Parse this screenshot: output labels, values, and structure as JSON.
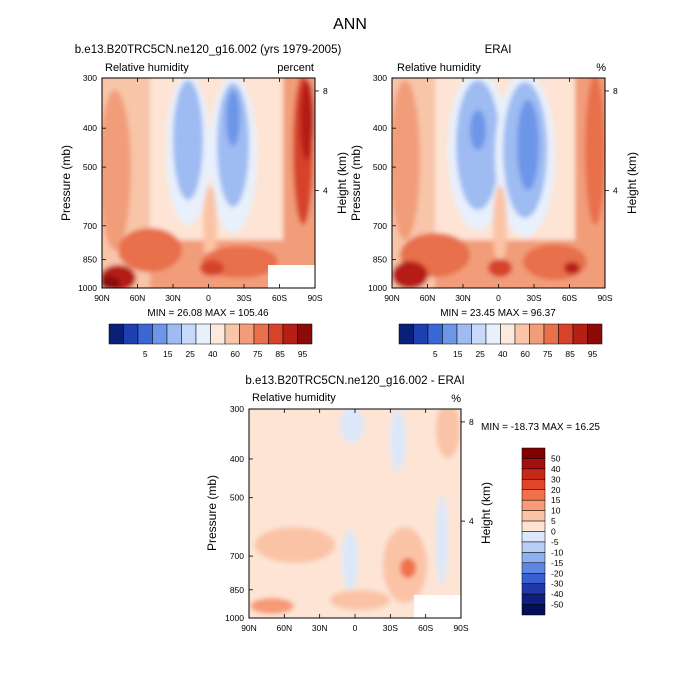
{
  "figure": {
    "title": "ANN"
  },
  "chart_data": [
    {
      "type": "heatmap",
      "title": "b.e13.B20TRC5CN.ne120_g16.002 (yrs 1979-2005)",
      "left_label": "Relative humidity",
      "right_label": "percent",
      "ylabel": "Pressure (mb)",
      "ylabel_right": "Height (km)",
      "x_ticks": [
        "90N",
        "60N",
        "30N",
        "0",
        "30S",
        "60S",
        "90S"
      ],
      "x_values": [
        90,
        60,
        30,
        0,
        -30,
        -60,
        -90
      ],
      "y_ticks": [
        "300",
        "400",
        "500",
        "700",
        "850",
        "1000"
      ],
      "y_values": [
        300,
        400,
        500,
        700,
        850,
        1000
      ],
      "height_ticks": [
        "8",
        "4"
      ],
      "height_values": [
        8,
        4
      ],
      "stats": "MIN = 26.08  MAX = 105.46",
      "min": 26.08,
      "max": 105.46,
      "levels": [
        5,
        15,
        25,
        40,
        60,
        75,
        85,
        95
      ]
    },
    {
      "type": "heatmap",
      "title": "ERAI",
      "left_label": "Relative humidity",
      "right_label": "%",
      "ylabel": "Pressure (mb)",
      "ylabel_right": "Height (km)",
      "x_ticks": [
        "90N",
        "60N",
        "30N",
        "0",
        "30S",
        "60S",
        "90S"
      ],
      "x_values": [
        90,
        60,
        30,
        0,
        -30,
        -60,
        -90
      ],
      "y_ticks": [
        "300",
        "400",
        "500",
        "700",
        "850",
        "1000"
      ],
      "y_values": [
        300,
        400,
        500,
        700,
        850,
        1000
      ],
      "height_ticks": [
        "8",
        "4"
      ],
      "height_values": [
        8,
        4
      ],
      "stats": "MIN = 23.45  MAX = 96.37",
      "min": 23.45,
      "max": 96.37,
      "levels": [
        5,
        15,
        25,
        40,
        60,
        75,
        85,
        95
      ]
    },
    {
      "type": "heatmap",
      "title": "b.e13.B20TRC5CN.ne120_g16.002 - ERAI",
      "left_label": "Relative humidity",
      "right_label": "%",
      "ylabel": "Pressure (mb)",
      "ylabel_right": "Height (km)",
      "x_ticks": [
        "90N",
        "60N",
        "30N",
        "0",
        "30S",
        "60S",
        "90S"
      ],
      "x_values": [
        90,
        60,
        30,
        0,
        -30,
        -60,
        -90
      ],
      "y_ticks": [
        "300",
        "400",
        "500",
        "700",
        "850",
        "1000"
      ],
      "y_values": [
        300,
        400,
        500,
        700,
        850,
        1000
      ],
      "height_ticks": [
        "8",
        "4"
      ],
      "height_values": [
        8,
        4
      ],
      "stats": "MIN = -18.73  MAX =  16.25",
      "min": -18.73,
      "max": 16.25,
      "levels": [
        50,
        40,
        30,
        20,
        15,
        10,
        5,
        0,
        -5,
        -10,
        -15,
        -20,
        -30,
        -40,
        -50
      ]
    }
  ],
  "colors": {
    "seq": [
      "#0a1f78",
      "#1d3fb0",
      "#3a67d6",
      "#6d95e8",
      "#9ebbf2",
      "#c8dafa",
      "#e8f0fc",
      "#fdeade",
      "#f8c5a8",
      "#f29d7a",
      "#e8704c",
      "#d6432a",
      "#b61f16",
      "#8c0a0a"
    ],
    "diff": [
      "#800000",
      "#a30e0e",
      "#c62817",
      "#e0462a",
      "#f1714a",
      "#f79a75",
      "#fbc3a6",
      "#fde4d4",
      "#dce8fa",
      "#b8cff5",
      "#8fb0ee",
      "#5f86e2",
      "#3a5fd0",
      "#2038a8",
      "#0f1f7e",
      "#050e5a"
    ]
  }
}
